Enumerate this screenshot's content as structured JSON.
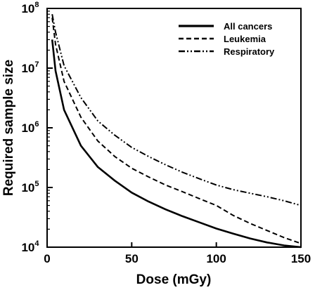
{
  "chart_data": {
    "type": "line",
    "title": "",
    "xlabel": "Dose (mGy)",
    "ylabel": "Required sample size",
    "xlim": [
      0,
      150
    ],
    "ylim": [
      10000,
      100000000
    ],
    "y_scale": "log",
    "x_ticks": [
      0,
      50,
      100,
      150
    ],
    "y_ticks": [
      {
        "value": 10000,
        "base": "10",
        "exp": "4"
      },
      {
        "value": 100000,
        "base": "10",
        "exp": "5"
      },
      {
        "value": 1000000,
        "base": "10",
        "exp": "6"
      },
      {
        "value": 10000000,
        "base": "10",
        "exp": "7"
      },
      {
        "value": 100000000,
        "base": "10",
        "exp": "8"
      }
    ],
    "grid": false,
    "legend_position": "top-right",
    "series": [
      {
        "name": "All cancers",
        "style": "solid",
        "x": [
          3,
          5,
          10,
          20,
          30,
          40,
          50,
          60,
          70,
          80,
          90,
          100,
          110,
          120,
          130,
          140,
          150
        ],
        "y": [
          30000000,
          9000000,
          2000000,
          500000,
          220000,
          130000,
          82000,
          58000,
          43000,
          33000,
          26000,
          20500,
          16800,
          14000,
          12000,
          10700,
          10000
        ]
      },
      {
        "name": "Leukemia",
        "style": "dashed",
        "x": [
          3,
          5,
          10,
          20,
          30,
          40,
          50,
          60,
          70,
          80,
          90,
          100,
          110,
          120,
          130,
          140,
          150
        ],
        "y": [
          70000000,
          25000000,
          6000000,
          1500000,
          600000,
          330000,
          210000,
          150000,
          110000,
          85000,
          65000,
          50000,
          34000,
          25000,
          19000,
          14500,
          11500
        ]
      },
      {
        "name": "Respiratory",
        "style": "dash-dot",
        "x": [
          3,
          5,
          10,
          20,
          30,
          40,
          50,
          60,
          70,
          80,
          90,
          100,
          110,
          120,
          130,
          140,
          150
        ],
        "y": [
          80000000,
          40000000,
          11000000,
          3200000,
          1300000,
          750000,
          470000,
          330000,
          240000,
          180000,
          140000,
          110000,
          92000,
          80000,
          70000,
          60000,
          50000
        ]
      }
    ]
  }
}
